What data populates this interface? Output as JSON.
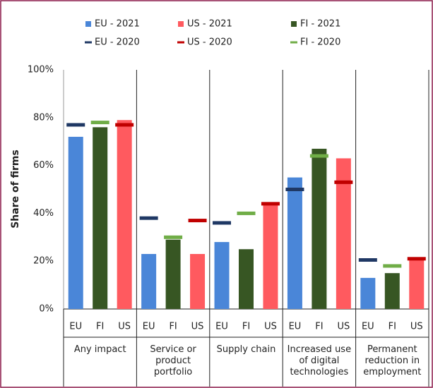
{
  "chart_data": {
    "type": "bar",
    "ylabel": "Share of firms",
    "categories": [
      "Any impact",
      "Service or product portfolio",
      "Supply chain",
      "Increased use of digital technologies",
      "Permanent reduction in employment"
    ],
    "subcategories": [
      "EU",
      "FI",
      "US"
    ],
    "series": [
      {
        "name": "EU - 2021",
        "color": "#4a86d8",
        "mark": "bar",
        "values": [
          72,
          23,
          28,
          55,
          13
        ]
      },
      {
        "name": "US - 2021",
        "color": "#ff5a5f",
        "mark": "bar",
        "values": [
          79,
          23,
          44,
          63,
          21
        ]
      },
      {
        "name": "FI - 2021",
        "color": "#375623",
        "mark": "bar",
        "values": [
          76,
          29,
          25,
          67,
          15
        ]
      },
      {
        "name": "EU - 2020",
        "color": "#1f3864",
        "mark": "line",
        "values": [
          77,
          38,
          36,
          50,
          20.5
        ]
      },
      {
        "name": "US - 2020",
        "color": "#c00000",
        "mark": "line",
        "values": [
          77,
          37,
          44,
          53,
          21
        ]
      },
      {
        "name": "FI - 2020",
        "color": "#70ad47",
        "mark": "line",
        "values": [
          78,
          30,
          40,
          64,
          18
        ]
      }
    ],
    "ylim": [
      0,
      100
    ],
    "yticks": [
      {
        "value": 0,
        "label": "0%"
      },
      {
        "value": 20,
        "label": "20%"
      },
      {
        "value": 40,
        "label": "40%"
      },
      {
        "value": 60,
        "label": "60%"
      },
      {
        "value": 80,
        "label": "80%"
      },
      {
        "value": 100,
        "label": "100%"
      }
    ],
    "grid": false
  }
}
